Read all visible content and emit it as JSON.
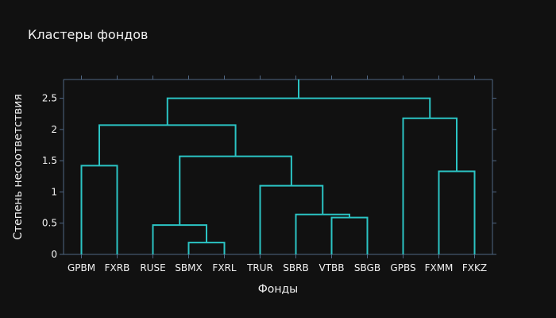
{
  "chart_data": {
    "type": "dendrogram",
    "title": "Кластеры фондов",
    "xlabel": "Фонды",
    "ylabel": "Степень несоответствия",
    "ylim": [
      0,
      2.8
    ],
    "yticks": [
      0,
      0.5,
      1,
      1.5,
      2,
      2.5
    ],
    "ytick_labels": [
      "0",
      "0.5",
      "1",
      "1.5",
      "2",
      "2.5"
    ],
    "leaves": [
      "GPBM",
      "FXRB",
      "RUSE",
      "SBMX",
      "FXRL",
      "TRUR",
      "SBRB",
      "VTBB",
      "SBGB",
      "GPBS",
      "FXMM",
      "FXKZ"
    ],
    "links": [
      {
        "x": [
          3.5,
          3.5,
          4.5,
          4.5
        ],
        "y": [
          0,
          0.19,
          0.19,
          0
        ]
      },
      {
        "x": [
          7.5,
          7.5,
          8.5,
          8.5
        ],
        "y": [
          0,
          0.59,
          0.59,
          0
        ]
      },
      {
        "x": [
          6.5,
          6.5,
          8.0,
          8.0
        ],
        "y": [
          0,
          0.64,
          0.64,
          0.59
        ]
      },
      {
        "x": [
          2.5,
          2.5,
          4.0,
          4.0
        ],
        "y": [
          0,
          0.47,
          0.47,
          0.19
        ]
      },
      {
        "x": [
          5.5,
          5.5,
          7.25,
          7.25
        ],
        "y": [
          0,
          1.1,
          1.1,
          0.64
        ]
      },
      {
        "x": [
          10.5,
          10.5,
          11.5,
          11.5
        ],
        "y": [
          0,
          1.33,
          1.33,
          0
        ]
      },
      {
        "x": [
          0.5,
          0.5,
          1.5,
          1.5
        ],
        "y": [
          0,
          1.42,
          1.42,
          0
        ]
      },
      {
        "x": [
          3.25,
          3.25,
          6.375,
          6.375
        ],
        "y": [
          0.47,
          1.57,
          1.57,
          1.1
        ]
      },
      {
        "x": [
          1.0,
          1.0,
          4.8125,
          4.8125
        ],
        "y": [
          1.42,
          2.07,
          2.07,
          1.57
        ]
      },
      {
        "x": [
          9.5,
          9.5,
          11.0,
          11.0
        ],
        "y": [
          0,
          2.18,
          2.18,
          1.33
        ]
      },
      {
        "x": [
          2.90625,
          2.90625,
          10.25,
          10.25
        ],
        "y": [
          2.07,
          2.5,
          2.5,
          2.18
        ]
      },
      {
        "x": [
          6.578125,
          6.578125
        ],
        "y": [
          2.5,
          2.8
        ]
      }
    ],
    "grid": false,
    "colors": {
      "background": "#111111",
      "link": "#2bc4c4",
      "axis": "#506784",
      "text": "#f2f2f2"
    }
  }
}
